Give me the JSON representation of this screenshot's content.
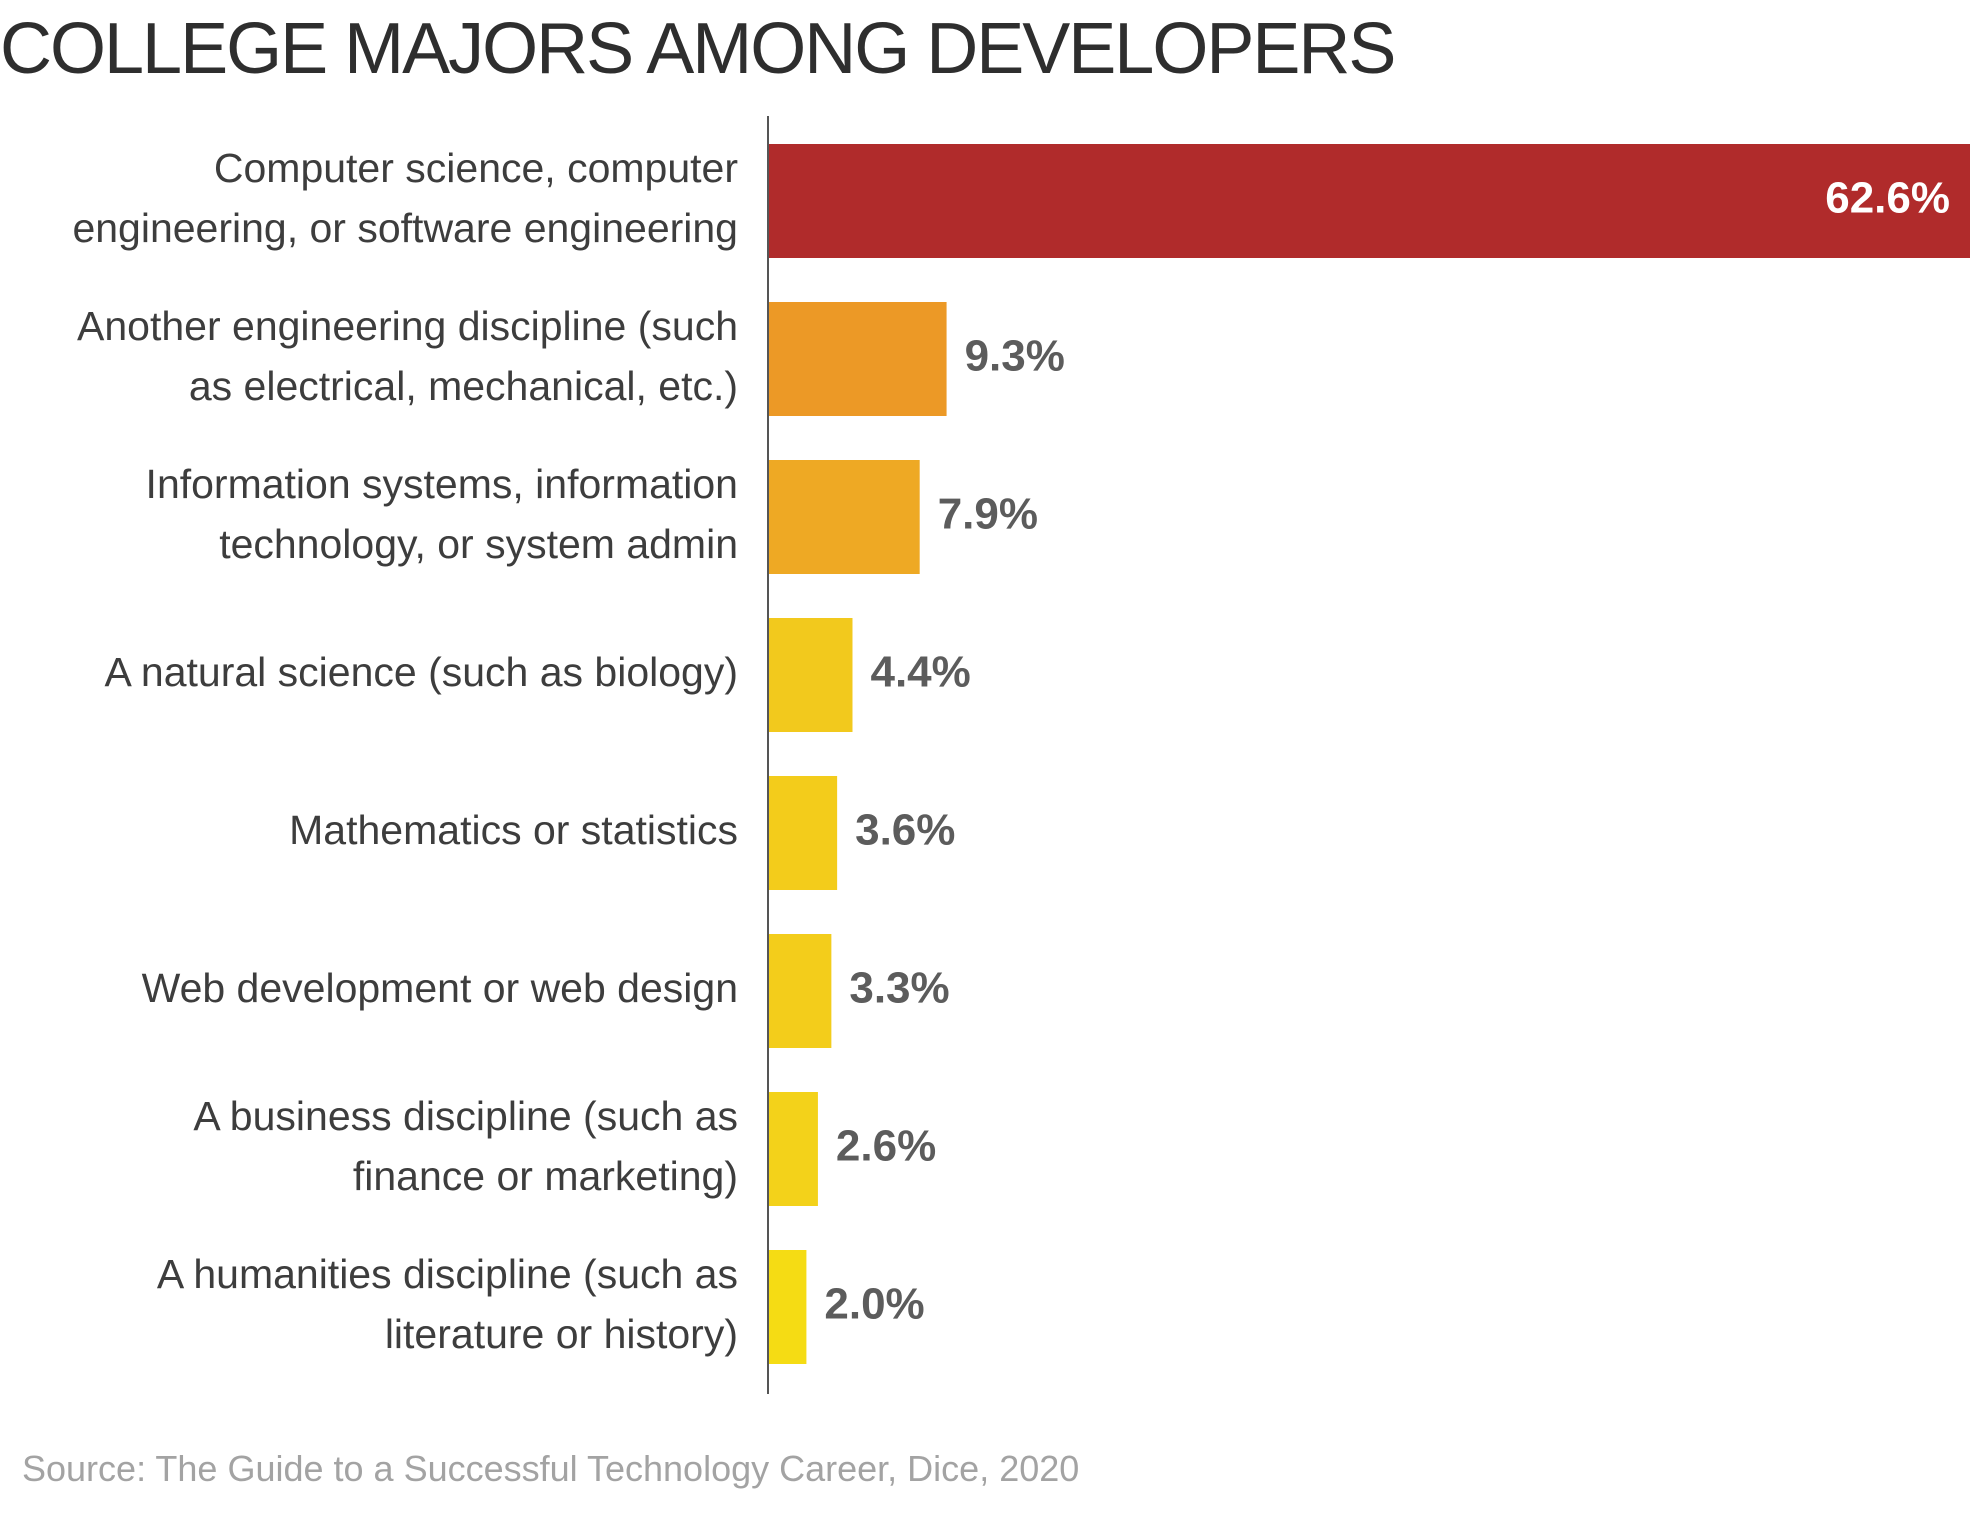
{
  "title": "COLLEGE MAJORS AMONG DEVELOPERS",
  "source": "Source: The Guide to a Successful Technology Career, Dice, 2020",
  "chart_data": {
    "type": "bar",
    "orientation": "horizontal",
    "title": "COLLEGE MAJORS AMONG DEVELOPERS",
    "xlabel": "",
    "ylabel": "",
    "xlim": [
      0,
      62.6
    ],
    "grid": false,
    "legend": "none",
    "value_format": "percent, one decimal",
    "categories": [
      [
        "Computer science, computer",
        "engineering, or software engineering"
      ],
      [
        "Another engineering discipline (such",
        "as electrical, mechanical, etc.)"
      ],
      [
        "Information systems, information",
        "technology, or system admin"
      ],
      [
        "A natural science (such as biology)"
      ],
      [
        "Mathematics or statistics"
      ],
      [
        "Web development or web design"
      ],
      [
        "A business discipline (such as",
        "finance or marketing)"
      ],
      [
        "A humanities discipline (such as",
        "literature or history)"
      ]
    ],
    "values": [
      62.6,
      9.3,
      7.9,
      4.4,
      3.6,
      3.3,
      2.6,
      2.0
    ],
    "value_labels": [
      "62.6%",
      "9.3%",
      "7.9%",
      "4.4%",
      "3.6%",
      "3.3%",
      "2.6%",
      "2.0%"
    ],
    "colors": [
      "#b02b2b",
      "#ec9926",
      "#eea924",
      "#f2c91d",
      "#f3cc1b",
      "#f3cd1b",
      "#f3d21a",
      "#f5dc14"
    ],
    "axis_color": "#555555"
  }
}
